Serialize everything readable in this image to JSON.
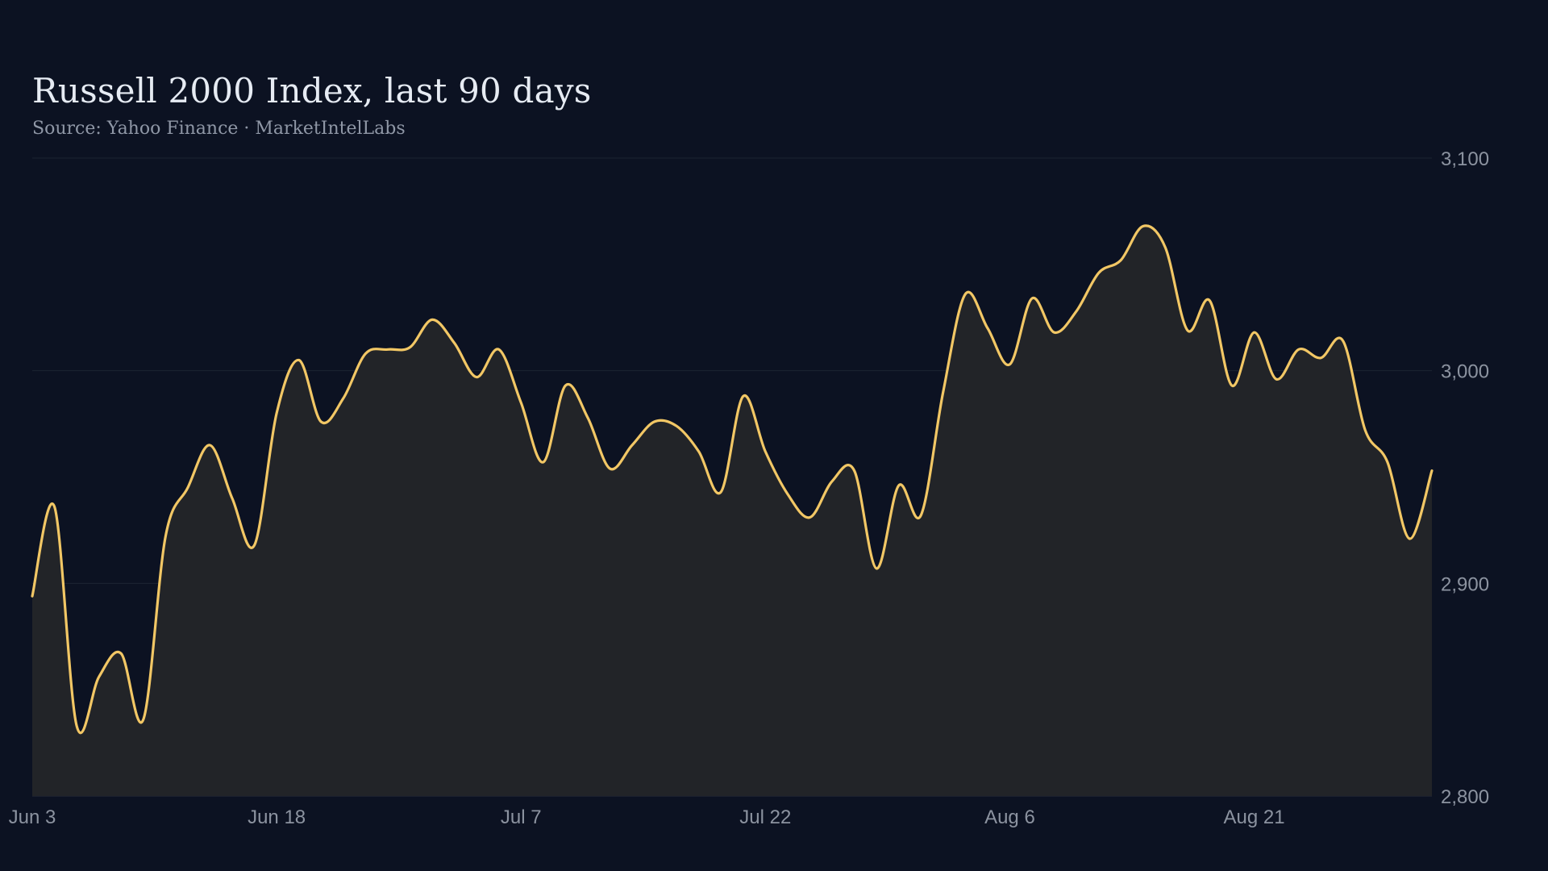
{
  "chart_data": {
    "type": "area",
    "title": "Russell 2000 Index, last 90 days",
    "subtitle": "Source: Yahoo Finance · MarketIntelLabs",
    "xlabel": "",
    "ylabel": "",
    "ylim": [
      2800,
      3100
    ],
    "y_ticks": [
      2800,
      2900,
      3000,
      3100
    ],
    "y_tick_labels": [
      "2,800",
      "2,900",
      "3,000",
      "3,100"
    ],
    "y_axis_position": "right",
    "grid": true,
    "x_ticks": [
      {
        "label": "Jun  3",
        "index": 0
      },
      {
        "label": "Jun 18",
        "index": 11
      },
      {
        "label": "Jul  7",
        "index": 22
      },
      {
        "label": "Jul 22",
        "index": 33
      },
      {
        "label": "Aug  6",
        "index": 44
      },
      {
        "label": "Aug 21",
        "index": 55
      }
    ],
    "series": [
      {
        "values": [
          2894,
          2936,
          2833,
          2856,
          2867,
          2836,
          2922,
          2945,
          2965,
          2940,
          2918,
          2980,
          3005,
          2976,
          2987,
          3008,
          3010,
          3011,
          3024,
          3013,
          2997,
          3010,
          2985,
          2957,
          2993,
          2978,
          2954,
          2965,
          2976,
          2974,
          2962,
          2943,
          2988,
          2962,
          2942,
          2931,
          2948,
          2953,
          2907,
          2946,
          2932,
          2990,
          3036,
          3020,
          3003,
          3034,
          3018,
          3028,
          3046,
          3052,
          3068,
          3058,
          3019,
          3033,
          2993,
          3018,
          2996,
          3010,
          3006,
          3014,
          2972,
          2957,
          2921,
          2953
        ],
        "color": "#f2c765"
      }
    ],
    "colors": {
      "background": "#0c1222",
      "line": "#f2c765",
      "area_fill": "#222428",
      "grid": "#1c2432",
      "tick_text": "#8c93a0"
    }
  }
}
